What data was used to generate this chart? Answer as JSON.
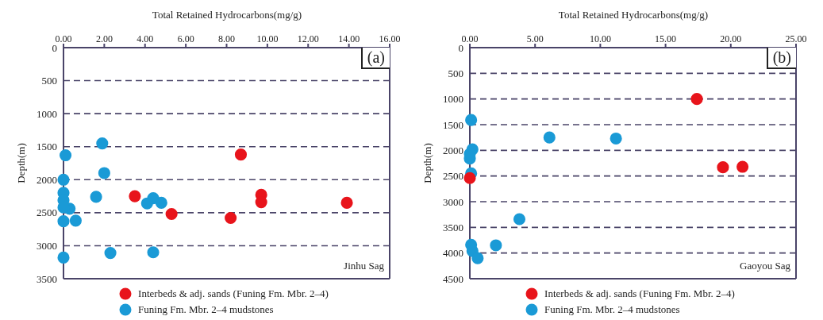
{
  "chart_data": [
    {
      "type": "scatter",
      "xlabel": "Total Retained Hydrocarbons(mg/g)",
      "ylabel": "Depth(m)",
      "annotations": [
        "(a)",
        "Jinhu Sag"
      ],
      "xlim": [
        0,
        16
      ],
      "xticks": [
        {
          "value": 0,
          "label": "0.00"
        },
        {
          "value": 2,
          "label": "2.00"
        },
        {
          "value": 4,
          "label": "4.00"
        },
        {
          "value": 6,
          "label": "6.00"
        },
        {
          "value": 8,
          "label": "8.00"
        },
        {
          "value": 10,
          "label": "10.00"
        },
        {
          "value": 12,
          "label": "12.00"
        },
        {
          "value": 14,
          "label": "14.00"
        },
        {
          "value": 16,
          "label": "16.00"
        }
      ],
      "ylim": [
        3500,
        0
      ],
      "yticks": [
        0,
        500,
        1000,
        1500,
        2000,
        2500,
        3000,
        3500
      ],
      "grid": "y",
      "line_style": "dashed",
      "legend": "bottom",
      "marker": "circle",
      "series": [
        {
          "name": "Interbeds & adj. sands (Funing Fm. Mbr. 2–4)",
          "color": "#e8141b",
          "x": [
            8.7,
            3.5,
            9.7,
            9.7,
            13.9,
            5.3,
            8.2
          ],
          "values": [
            1620,
            2250,
            2230,
            2340,
            2350,
            2520,
            2580
          ]
        },
        {
          "name": "Funing Fm. Mbr. 2–4 mudstones",
          "color": "#1a9ad6",
          "x": [
            1.9,
            0.1,
            2.0,
            0.0,
            0.0,
            0.0,
            0.3,
            0.0,
            1.6,
            4.4,
            4.1,
            4.8,
            0.0,
            0.6,
            2.3,
            4.4,
            0.0
          ],
          "values": [
            1450,
            1630,
            1900,
            2000,
            2200,
            2310,
            2440,
            2420,
            2260,
            2280,
            2360,
            2350,
            2630,
            2620,
            3110,
            3100,
            3180
          ]
        }
      ]
    },
    {
      "type": "scatter",
      "xlabel": "Total Retained Hydrocarbons(mg/g)",
      "ylabel": "Depth(m)",
      "annotations": [
        "(b)",
        "Gaoyou Sag"
      ],
      "xlim": [
        0,
        25
      ],
      "xticks": [
        {
          "value": 0,
          "label": "0.00"
        },
        {
          "value": 5,
          "label": "5.00"
        },
        {
          "value": 10,
          "label": "10.00"
        },
        {
          "value": 15,
          "label": "15.00"
        },
        {
          "value": 20,
          "label": "20.00"
        },
        {
          "value": 25,
          "label": "25.00"
        }
      ],
      "ylim": [
        4500,
        0
      ],
      "yticks": [
        0,
        500,
        1000,
        1500,
        2000,
        2500,
        3000,
        3500,
        4000,
        4500
      ],
      "grid": "y",
      "line_style": "dashed",
      "legend": "bottom",
      "marker": "circle",
      "series": [
        {
          "name": "Interbeds & adj. sands (Funing Fm. Mbr. 2–4)",
          "color": "#e8141b",
          "x": [
            17.4,
            19.4,
            20.9,
            0.0
          ],
          "values": [
            1000,
            2330,
            2320,
            2540
          ]
        },
        {
          "name": "Funing Fm. Mbr. 2–4 mudstones",
          "color": "#1a9ad6",
          "x": [
            0.1,
            6.1,
            11.2,
            0.2,
            0.0,
            0.1,
            3.8,
            0.1,
            2.0,
            0.2,
            0.6,
            0.0
          ],
          "values": [
            1410,
            1750,
            1770,
            1980,
            2160,
            2450,
            3340,
            3840,
            3850,
            3960,
            4100,
            2070
          ]
        }
      ]
    }
  ]
}
